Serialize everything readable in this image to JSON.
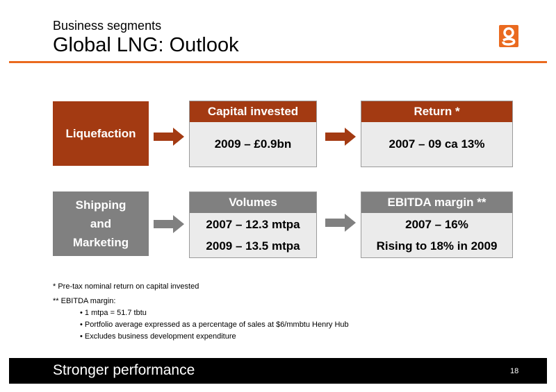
{
  "header": {
    "subtitle": "Business segments",
    "title": "Global LNG: Outlook",
    "accent_color": "#ea6a1f",
    "logo_icon": "bg-logo-icon"
  },
  "segments": {
    "liquefaction": "Liquefaction",
    "shipping": [
      "Shipping",
      "and",
      "Marketing"
    ]
  },
  "capital_invested": {
    "header": "Capital invested",
    "value": "2009 – £0.9bn"
  },
  "return": {
    "header": "Return *",
    "value": "2007 – 09 ca 13%"
  },
  "volumes": {
    "header": "Volumes",
    "line1": "2007 – 12.3 mtpa",
    "line2": "2009 – 13.5 mtpa"
  },
  "ebitda": {
    "header": "EBITDA margin **",
    "line1": "2007 – 16%",
    "line2": "Rising to 18% in 2009"
  },
  "notes": {
    "note1": "* Pre-tax nominal return on capital invested",
    "note2": "** EBITDA margin:",
    "bullets": [
      "• 1 mtpa = 51.7 tbtu",
      "• Portfolio average expressed as a percentage of sales at $6/mmbtu Henry Hub",
      "• Excludes business development expenditure"
    ]
  },
  "footer": {
    "text": "Stronger performance",
    "page": "18"
  },
  "colors": {
    "brown": "#a33a12",
    "grey": "#808080",
    "box_fill": "#ebebeb"
  }
}
